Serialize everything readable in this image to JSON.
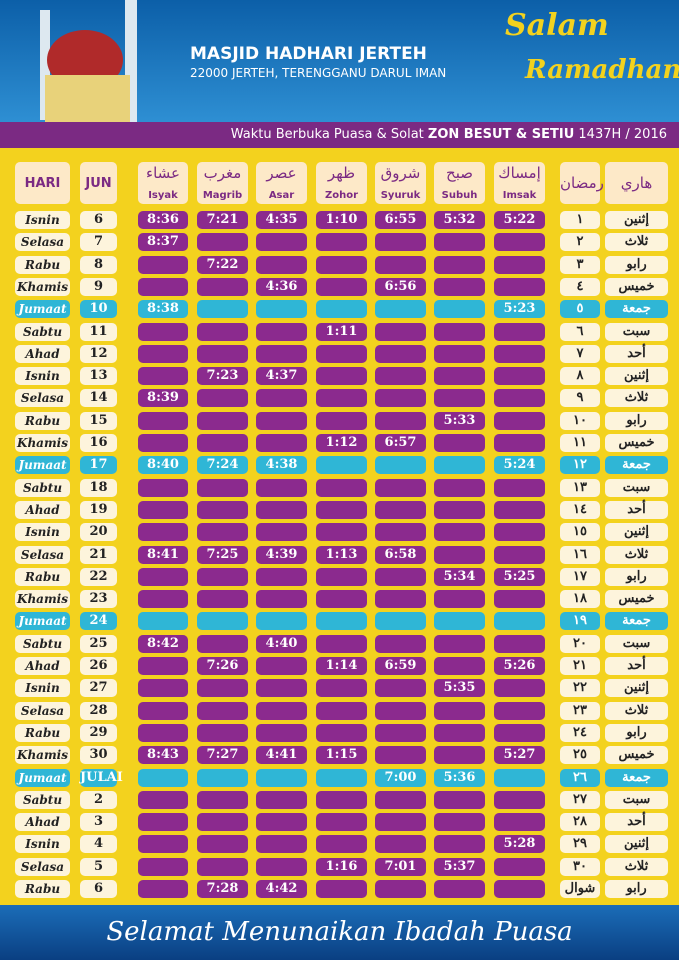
{
  "header": {
    "title": "MASJID HADHARI JERTEH",
    "address": "22000 JERTEH, TERENGGANU DARUL IMAN",
    "logo": [
      "Salam",
      "Ramadhan"
    ],
    "banner": [
      "Waktu Berbuka Puasa & Solat",
      "ZON BESUT & SETIU",
      "1437H / 2016"
    ]
  },
  "table": {
    "columns": [
      {
        "label": "HARI"
      },
      {
        "label": "JUN"
      },
      {
        "label": "Isyak",
        "arabic": "عشاء"
      },
      {
        "label": "Magrib",
        "arabic": "مغرب"
      },
      {
        "label": "Asar",
        "arabic": "عصر"
      },
      {
        "label": "Zohor",
        "arabic": "ظهر"
      },
      {
        "label": "Syuruk",
        "arabic": "شروق"
      },
      {
        "label": "Subuh",
        "arabic": "صبح"
      },
      {
        "label": "Imsak",
        "arabic": "إمساك"
      },
      {
        "arabic": "رمضان"
      },
      {
        "arabic": "هاري"
      }
    ],
    "rows": [
      [
        "Isnin",
        "6",
        "8:36",
        "7:21",
        "4:35",
        "1:10",
        "6:55",
        "5:32",
        "5:22",
        "١",
        "إثنين"
      ],
      [
        "Selasa",
        "7",
        "8:37",
        null,
        null,
        null,
        null,
        null,
        null,
        "٢",
        "ثلاث"
      ],
      [
        "Rabu",
        "8",
        null,
        "7:22",
        null,
        null,
        null,
        null,
        null,
        "٣",
        "رابو"
      ],
      [
        "Khamis",
        "9",
        null,
        null,
        "4:36",
        null,
        "6:56",
        null,
        null,
        "٤",
        "خميس"
      ],
      [
        "Jumaat",
        "10",
        "8:38",
        null,
        null,
        null,
        null,
        null,
        "5:23",
        "٥",
        "جمعة"
      ],
      [
        "Sabtu",
        "11",
        null,
        null,
        null,
        "1:11",
        null,
        null,
        null,
        "٦",
        "سبت"
      ],
      [
        "Ahad",
        "12",
        null,
        null,
        null,
        null,
        null,
        null,
        null,
        "٧",
        "أحد"
      ],
      [
        "Isnin",
        "13",
        null,
        "7:23",
        "4:37",
        null,
        null,
        null,
        null,
        "٨",
        "إثنين"
      ],
      [
        "Selasa",
        "14",
        "8:39",
        null,
        null,
        null,
        null,
        null,
        null,
        "٩",
        "ثلاث"
      ],
      [
        "Rabu",
        "15",
        null,
        null,
        null,
        null,
        null,
        "5:33",
        null,
        "١٠",
        "رابو"
      ],
      [
        "Khamis",
        "16",
        null,
        null,
        null,
        "1:12",
        "6:57",
        null,
        null,
        "١١",
        "خميس"
      ],
      [
        "Jumaat",
        "17",
        "8:40",
        "7:24",
        "4:38",
        null,
        null,
        null,
        "5:24",
        "١٢",
        "جمعة"
      ],
      [
        "Sabtu",
        "18",
        null,
        null,
        null,
        null,
        null,
        null,
        null,
        "١٣",
        "سبت"
      ],
      [
        "Ahad",
        "19",
        null,
        null,
        null,
        null,
        null,
        null,
        null,
        "١٤",
        "أحد"
      ],
      [
        "Isnin",
        "20",
        null,
        null,
        null,
        null,
        null,
        null,
        null,
        "١٥",
        "إثنين"
      ],
      [
        "Selasa",
        "21",
        "8:41",
        "7:25",
        "4:39",
        "1:13",
        "6:58",
        null,
        null,
        "١٦",
        "ثلاث"
      ],
      [
        "Rabu",
        "22",
        null,
        null,
        null,
        null,
        null,
        "5:34",
        "5:25",
        "١٧",
        "رابو"
      ],
      [
        "Khamis",
        "23",
        null,
        null,
        null,
        null,
        null,
        null,
        null,
        "١٨",
        "خميس"
      ],
      [
        "Jumaat",
        "24",
        null,
        null,
        null,
        null,
        null,
        null,
        null,
        "١٩",
        "جمعة"
      ],
      [
        "Sabtu",
        "25",
        "8:42",
        null,
        "4:40",
        null,
        null,
        null,
        null,
        "٢٠",
        "سبت"
      ],
      [
        "Ahad",
        "26",
        null,
        "7:26",
        null,
        "1:14",
        "6:59",
        null,
        "5:26",
        "٢١",
        "أحد"
      ],
      [
        "Isnin",
        "27",
        null,
        null,
        null,
        null,
        null,
        "5:35",
        null,
        "٢٢",
        "إثنين"
      ],
      [
        "Selasa",
        "28",
        null,
        null,
        null,
        null,
        null,
        null,
        null,
        "٢٣",
        "ثلاث"
      ],
      [
        "Rabu",
        "29",
        null,
        null,
        null,
        null,
        null,
        null,
        null,
        "٢٤",
        "رابو"
      ],
      [
        "Khamis",
        "30",
        "8:43",
        "7:27",
        "4:41",
        "1:15",
        null,
        null,
        "5:27",
        "٢٥",
        "خميس"
      ],
      [
        "Jumaat",
        "JULAI",
        null,
        null,
        null,
        null,
        "7:00",
        "5:36",
        null,
        "٢٦",
        "جمعة"
      ],
      [
        "Sabtu",
        "2",
        null,
        null,
        null,
        null,
        null,
        null,
        null,
        "٢٧",
        "سبت"
      ],
      [
        "Ahad",
        "3",
        null,
        null,
        null,
        null,
        null,
        null,
        null,
        "٢٨",
        "أحد"
      ],
      [
        "Isnin",
        "4",
        null,
        null,
        null,
        null,
        null,
        null,
        "5:28",
        "٢٩",
        "إثنين"
      ],
      [
        "Selasa",
        "5",
        null,
        null,
        null,
        "1:16",
        "7:01",
        "5:37",
        null,
        "٣٠",
        "ثلاث"
      ],
      [
        "Rabu",
        "6",
        null,
        "7:28",
        "4:42",
        null,
        null,
        null,
        null,
        "شوال",
        "رابو"
      ]
    ]
  },
  "footer": "Selamat Menunaikan Ibadah Puasa"
}
